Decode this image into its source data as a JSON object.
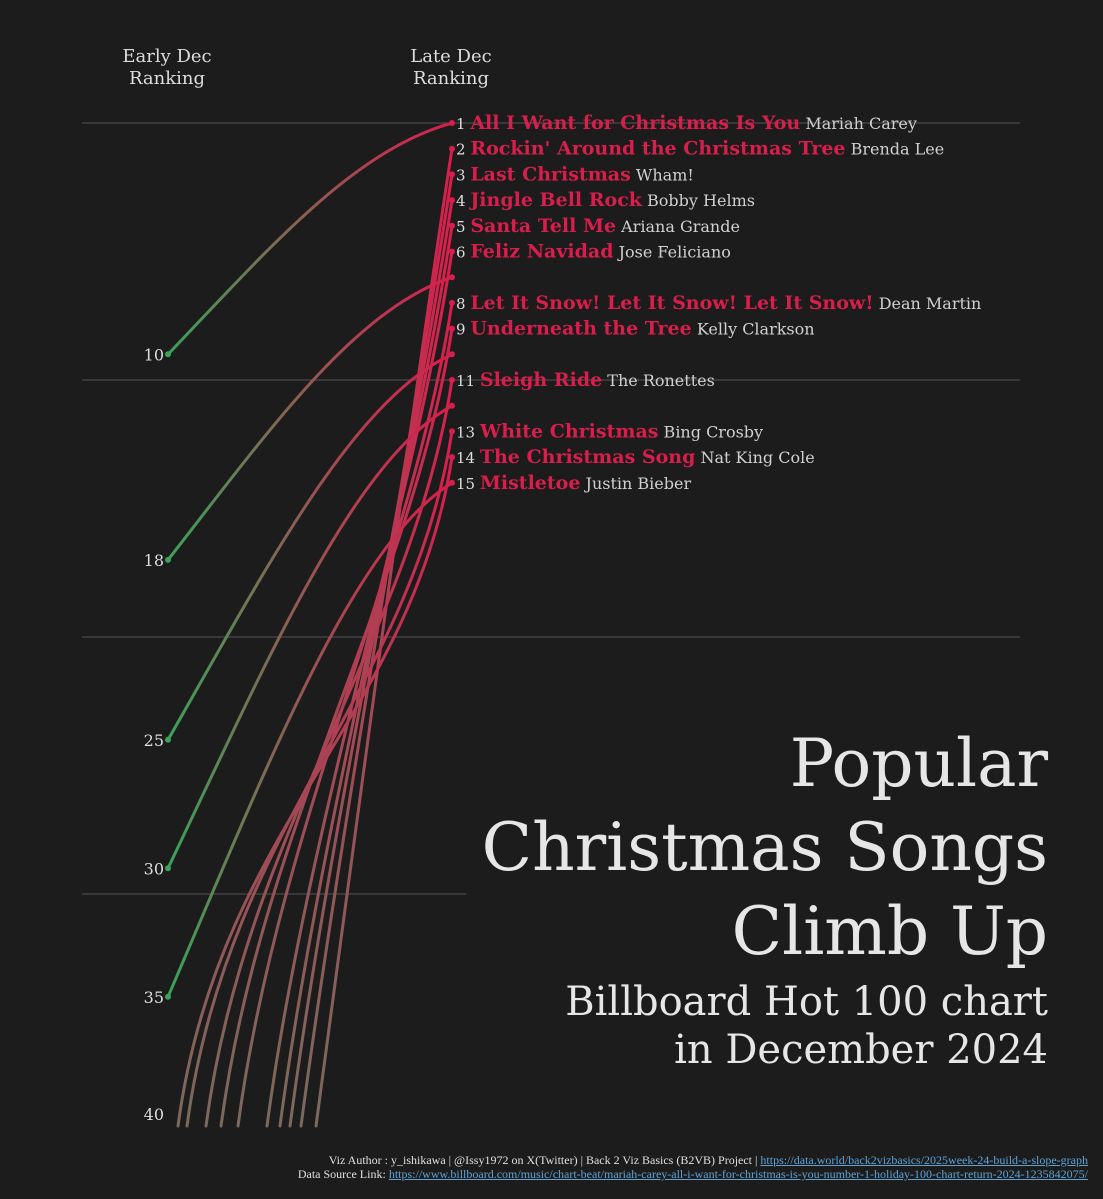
{
  "header": {
    "early_line1": "Early Dec",
    "early_line2": "Ranking",
    "late_line1": "Late Dec",
    "late_line2": "Ranking"
  },
  "title": {
    "line1": "Popular",
    "line2": "Christmas Songs",
    "line3": "Climb Up",
    "sub1": "Billboard Hot 100 chart",
    "sub2": "in December 2024"
  },
  "footer": {
    "credit": "Viz Author : y_ishikawa | @Issy1972 on X(Twitter) | Back 2 Viz Basics (B2VB) Project | ",
    "credit_link": "https://data.world/back2vizbasics/2025week-24-build-a-slope-graph",
    "source_label": "Data Source Link: ",
    "source_link": "https://www.billboard.com/music/chart-beat/mariah-carey-all-i-want-for-christmas-is-you-number-1-holiday-100-chart-return-2024-1235842075/"
  },
  "colors": {
    "background": "#1c1c1c",
    "title_red": "#d81e4c",
    "start_green": "#3aa25a",
    "end_red": "#d81e4c",
    "grid": "#555555",
    "text": "#dddddd"
  },
  "chart_data": {
    "type": "slope",
    "left_axis_label": "Early Dec Ranking",
    "right_axis_label": "Late Dec Ranking",
    "ylim": [
      1,
      40
    ],
    "left_ticks": [
      10,
      18,
      25,
      30,
      35,
      40
    ],
    "series": [
      {
        "title": "All I Want for Christmas Is You",
        "artist": "Mariah Carey",
        "early": 10,
        "late": 1
      },
      {
        "title": "Rockin' Around the Christmas Tree",
        "artist": "Brenda Lee",
        "early": 40,
        "late": 2
      },
      {
        "title": "Last Christmas",
        "artist": "Wham!",
        "early": 40,
        "late": 3
      },
      {
        "title": "Jingle Bell Rock",
        "artist": "Bobby Helms",
        "early": 40,
        "late": 4
      },
      {
        "title": "Santa Tell Me",
        "artist": "Ariana Grande",
        "early": 40,
        "late": 5
      },
      {
        "title": "Feliz Navidad",
        "artist": "Jose Feliciano",
        "early": 40,
        "late": 6
      },
      {
        "title": "",
        "artist": "",
        "early": 18,
        "late": 7
      },
      {
        "title": "Let It Snow! Let It Snow! Let It Snow!",
        "artist": "Dean Martin",
        "early": 40,
        "late": 8
      },
      {
        "title": "Underneath the Tree",
        "artist": "Kelly Clarkson",
        "early": 40,
        "late": 9
      },
      {
        "title": "",
        "artist": "",
        "early": 25,
        "late": 10
      },
      {
        "title": "Sleigh Ride",
        "artist": "The Ronettes",
        "early": 40,
        "late": 11
      },
      {
        "title": "",
        "artist": "",
        "early": 30,
        "late": 12
      },
      {
        "title": "White Christmas",
        "artist": "Bing Crosby",
        "early": 40,
        "late": 13
      },
      {
        "title": "The Christmas Song",
        "artist": "Nat King Cole",
        "early": 40,
        "late": 14
      },
      {
        "title": "Mistletoe",
        "artist": "Justin Bieber",
        "early": 35,
        "late": 15
      }
    ]
  }
}
